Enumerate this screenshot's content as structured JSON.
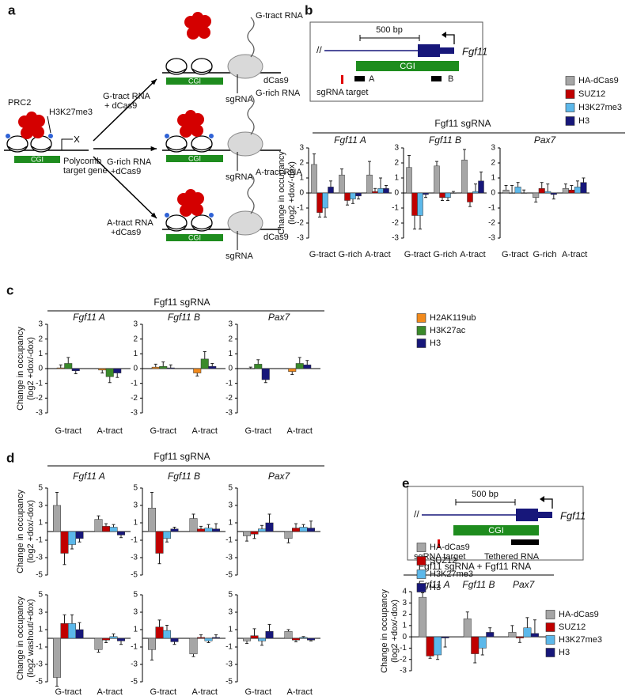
{
  "panel_a": {
    "letter": "a",
    "prc2": "PRC2",
    "mark": "H3K27me3",
    "cgi": "CGI",
    "target_gene": [
      "Polycomb",
      "target gene"
    ],
    "arrows": [
      [
        "G-tract RNA",
        "+ dCas9"
      ],
      [
        "G-rich RNA",
        "+dCas9"
      ],
      [
        "A-tract RNA",
        "+dCas9"
      ]
    ],
    "scenes": [
      {
        "rna": "G-tract RNA",
        "dcas9": "dCas9",
        "sgrna": "sgRNA",
        "cgi": "CGI"
      },
      {
        "rna": "G-rich RNA",
        "sgrna": "sgRNA",
        "cgi": "CGI"
      },
      {
        "rna": "A-tract RNA",
        "dcas9": "dCas9",
        "sgrna": "sgRNA",
        "cgi": "CGI"
      }
    ]
  },
  "panel_b": {
    "letter": "b",
    "header": "Fgf11 sgRNA",
    "diagram": {
      "scale": "500 bp",
      "gene": "Fgf11",
      "cgi": "CGI",
      "site_a": "A",
      "site_b": "B",
      "sgrna_target": "sgRNA target"
    }
  },
  "panel_c": {
    "letter": "c",
    "header": "Fgf11 sgRNA"
  },
  "panel_d": {
    "letter": "d",
    "header": "Fgf11 sgRNA"
  },
  "panel_e": {
    "letter": "e",
    "header": "Fgf11 sgRNA + Fgf11 RNA",
    "diagram": {
      "scale": "500 bp",
      "gene": "Fgf11",
      "cgi": "CGI",
      "sgrna_target": "sgRNA target",
      "tethered_rna": "Tethered RNA"
    }
  },
  "chart_data": [
    {
      "type": "bar",
      "title": "Fgf11 A",
      "ylabel": [
        "Change in occupancy",
        "(log2 +dox/-dox)"
      ],
      "categories": [
        "G-tract",
        "G-rich",
        "A-tract"
      ],
      "ylim": [
        -3,
        3
      ],
      "yticks": [
        3,
        2,
        1,
        0,
        -1,
        -2,
        -3
      ],
      "series": [
        {
          "name": "HA-dCas9",
          "color": "#a6a6a6",
          "values": [
            1.9,
            1.2,
            1.2
          ],
          "errors": [
            0.7,
            0.4,
            0.9
          ]
        },
        {
          "name": "SUZ12",
          "color": "#c00000",
          "values": [
            -1.3,
            -0.5,
            0.1
          ],
          "errors": [
            0.3,
            0.3,
            0.2
          ]
        },
        {
          "name": "H3K27me3",
          "color": "#5cb8ea",
          "values": [
            -1.0,
            -0.4,
            0.3
          ],
          "errors": [
            0.6,
            0.3,
            0.7
          ]
        },
        {
          "name": "H3",
          "color": "#17177a",
          "values": [
            0.4,
            -0.2,
            0.3
          ],
          "errors": [
            0.4,
            0.2,
            0.2
          ]
        }
      ]
    },
    {
      "type": "bar",
      "title": "Fgf11 B",
      "categories": [
        "G-tract",
        "G-rich",
        "A-tract"
      ],
      "ylim": [
        -3,
        3
      ],
      "yticks": [
        3,
        2,
        1,
        0,
        -1,
        -2,
        -3
      ],
      "series": [
        {
          "name": "HA-dCas9",
          "color": "#a6a6a6",
          "values": [
            1.7,
            1.8,
            2.2
          ],
          "errors": [
            0.8,
            0.3,
            0.7
          ]
        },
        {
          "name": "SUZ12",
          "color": "#c00000",
          "values": [
            -1.5,
            -0.3,
            -0.6
          ],
          "errors": [
            0.9,
            0.2,
            0.3
          ]
        },
        {
          "name": "H3K27me3",
          "color": "#5cb8ea",
          "values": [
            -1.5,
            -0.3,
            0.1
          ],
          "errors": [
            0.9,
            0.2,
            0.5
          ]
        },
        {
          "name": "H3",
          "color": "#17177a",
          "values": [
            -0.1,
            0.0,
            0.8
          ],
          "errors": [
            0.2,
            0.1,
            0.6
          ]
        }
      ]
    },
    {
      "type": "bar",
      "title": "Pax7",
      "categories": [
        "G-tract",
        "G-rich",
        "A-tract"
      ],
      "ylim": [
        -3,
        3
      ],
      "yticks": [
        3,
        2,
        1,
        0,
        -1,
        -2,
        -3
      ],
      "series": [
        {
          "name": "HA-dCas9",
          "color": "#a6a6a6",
          "values": [
            0.2,
            -0.3,
            0.3
          ],
          "errors": [
            0.3,
            0.3,
            0.3
          ]
        },
        {
          "name": "SUZ12",
          "color": "#c00000",
          "values": [
            0.0,
            0.3,
            0.2
          ],
          "errors": [
            0.5,
            0.4,
            0.3
          ]
        },
        {
          "name": "H3K27me3",
          "color": "#5cb8ea",
          "values": [
            0.4,
            0.1,
            0.4
          ],
          "errors": [
            0.3,
            0.5,
            0.4
          ]
        },
        {
          "name": "H3",
          "color": "#17177a",
          "values": [
            0.0,
            -0.1,
            0.7
          ],
          "errors": [
            0.2,
            0.3,
            0.3
          ]
        }
      ]
    },
    {
      "type": "bar",
      "title": "Fgf11 A",
      "ylabel": [
        "Change in occupancy",
        "(log2 +dox/-dox)"
      ],
      "categories": [
        "G-tract",
        "A-tract"
      ],
      "ylim": [
        -3,
        3
      ],
      "yticks": [
        3,
        2,
        1,
        0,
        -1,
        -2,
        -3
      ],
      "series": [
        {
          "name": "H2AK119ub",
          "color": "#f28a1c",
          "values": [
            0.05,
            -0.1
          ],
          "errors": [
            0.2,
            0.2
          ]
        },
        {
          "name": "H3K27ac",
          "color": "#3a8a2a",
          "values": [
            0.35,
            -0.55
          ],
          "errors": [
            0.4,
            0.4
          ]
        },
        {
          "name": "H3",
          "color": "#17177a",
          "values": [
            -0.15,
            -0.3
          ],
          "errors": [
            0.2,
            0.3
          ]
        }
      ]
    },
    {
      "type": "bar",
      "title": "Fgf11 B",
      "categories": [
        "G-tract",
        "A-tract"
      ],
      "ylim": [
        -3,
        3
      ],
      "yticks": [
        3,
        2,
        1,
        0,
        -1,
        -2,
        -3
      ],
      "series": [
        {
          "name": "H2AK119ub",
          "color": "#f28a1c",
          "values": [
            0.1,
            -0.3
          ],
          "errors": [
            0.2,
            0.2
          ]
        },
        {
          "name": "H3K27ac",
          "color": "#3a8a2a",
          "values": [
            0.15,
            0.65
          ],
          "errors": [
            0.3,
            0.5
          ]
        },
        {
          "name": "H3",
          "color": "#17177a",
          "values": [
            0.05,
            0.15
          ],
          "errors": [
            0.2,
            0.2
          ]
        }
      ]
    },
    {
      "type": "bar",
      "title": "Pax7",
      "categories": [
        "G-tract",
        "A-tract"
      ],
      "ylim": [
        -3,
        3
      ],
      "yticks": [
        3,
        2,
        1,
        0,
        -1,
        -2,
        -3
      ],
      "series": [
        {
          "name": "H2AK119ub",
          "color": "#f28a1c",
          "values": [
            0.0,
            -0.2
          ],
          "errors": [
            0.1,
            0.2
          ]
        },
        {
          "name": "H3K27ac",
          "color": "#3a8a2a",
          "values": [
            0.3,
            0.35
          ],
          "errors": [
            0.3,
            0.4
          ]
        },
        {
          "name": "H3",
          "color": "#17177a",
          "values": [
            -0.75,
            0.25
          ],
          "errors": [
            0.2,
            0.3
          ]
        }
      ]
    },
    {
      "type": "bar",
      "title": "Fgf11 A",
      "ylabel": [
        "Change in occupancy",
        "(log2 +dox/-dox)"
      ],
      "ylim": [
        -5,
        5
      ],
      "yticks": [
        5,
        3,
        1,
        -1,
        -3,
        -5
      ],
      "series": [
        {
          "name": "HA-dCas9",
          "color": "#a6a6a6",
          "values": [
            3.0,
            1.4
          ],
          "errors": [
            1.5,
            0.4
          ]
        },
        {
          "name": "SUZ12",
          "color": "#c00000",
          "values": [
            -2.5,
            0.6
          ],
          "errors": [
            1.3,
            0.3
          ]
        },
        {
          "name": "H3K27me3",
          "color": "#5cb8ea",
          "values": [
            -1.5,
            0.5
          ],
          "errors": [
            0.5,
            0.3
          ]
        },
        {
          "name": "H3",
          "color": "#17177a",
          "values": [
            -0.8,
            -0.4
          ],
          "errors": [
            0.4,
            0.3
          ]
        }
      ]
    },
    {
      "type": "bar",
      "title": "Fgf11 B",
      "ylim": [
        -5,
        5
      ],
      "yticks": [
        5,
        3,
        1,
        -1,
        -3,
        -5
      ],
      "series": [
        {
          "name": "HA-dCas9",
          "color": "#a6a6a6",
          "values": [
            2.7,
            1.5
          ],
          "errors": [
            1.8,
            0.5
          ]
        },
        {
          "name": "SUZ12",
          "color": "#c00000",
          "values": [
            -2.5,
            0.3
          ],
          "errors": [
            1.2,
            0.3
          ]
        },
        {
          "name": "H3K27me3",
          "color": "#5cb8ea",
          "values": [
            -0.8,
            0.4
          ],
          "errors": [
            0.4,
            0.4
          ]
        },
        {
          "name": "H3",
          "color": "#17177a",
          "values": [
            0.3,
            0.3
          ],
          "errors": [
            0.2,
            0.6
          ]
        }
      ]
    },
    {
      "type": "bar",
      "title": "Pax7",
      "ylim": [
        -5,
        5
      ],
      "yticks": [
        5,
        3,
        1,
        -1,
        -3,
        -5
      ],
      "series": [
        {
          "name": "HA-dCas9",
          "color": "#a6a6a6",
          "values": [
            -0.5,
            -0.8
          ],
          "errors": [
            0.6,
            0.5
          ]
        },
        {
          "name": "SUZ12",
          "color": "#c00000",
          "values": [
            -0.3,
            0.4
          ],
          "errors": [
            0.5,
            0.5
          ]
        },
        {
          "name": "H3K27me3",
          "color": "#5cb8ea",
          "values": [
            0.3,
            0.5
          ],
          "errors": [
            0.4,
            0.3
          ]
        },
        {
          "name": "H3",
          "color": "#17177a",
          "values": [
            1.0,
            0.4
          ],
          "errors": [
            1.0,
            0.8
          ]
        }
      ]
    },
    {
      "type": "bar",
      "ylabel": [
        "Change in occupancy",
        "(log2 washout/+dox)"
      ],
      "categories": [
        "G-tract",
        "A-tract"
      ],
      "ylim": [
        -5,
        5
      ],
      "yticks": [
        5,
        3,
        1,
        -1,
        -3,
        -5
      ],
      "series": [
        {
          "name": "HA-dCas9",
          "color": "#a6a6a6",
          "values": [
            -4.5,
            -1.3
          ],
          "errors": [
            1.0,
            0.3
          ]
        },
        {
          "name": "SUZ12",
          "color": "#c00000",
          "values": [
            1.7,
            -0.2
          ],
          "errors": [
            1.0,
            0.3
          ]
        },
        {
          "name": "H3K27me3",
          "color": "#5cb8ea",
          "values": [
            1.7,
            0.2
          ],
          "errors": [
            1.0,
            0.3
          ]
        },
        {
          "name": "H3",
          "color": "#17177a",
          "values": [
            1.0,
            -0.3
          ],
          "errors": [
            0.8,
            0.4
          ]
        }
      ]
    },
    {
      "type": "bar",
      "categories": [
        "G-tract",
        "A-tract"
      ],
      "ylim": [
        -5,
        5
      ],
      "yticks": [
        5,
        3,
        1,
        -1,
        -3,
        -5
      ],
      "series": [
        {
          "name": "HA-dCas9",
          "color": "#a6a6a6",
          "values": [
            -1.3,
            -1.8
          ],
          "errors": [
            1.2,
            0.3
          ]
        },
        {
          "name": "SUZ12",
          "color": "#c00000",
          "values": [
            1.3,
            0.1
          ],
          "errors": [
            0.8,
            0.3
          ]
        },
        {
          "name": "H3K27me3",
          "color": "#5cb8ea",
          "values": [
            0.9,
            -0.3
          ],
          "errors": [
            0.6,
            0.2
          ]
        },
        {
          "name": "H3",
          "color": "#17177a",
          "values": [
            -0.4,
            0.1
          ],
          "errors": [
            0.3,
            0.3
          ]
        }
      ]
    },
    {
      "type": "bar",
      "categories": [
        "G-tract",
        "A-tract"
      ],
      "ylim": [
        -5,
        5
      ],
      "yticks": [
        5,
        3,
        1,
        -1,
        -3,
        -5
      ],
      "series": [
        {
          "name": "HA-dCas9",
          "color": "#a6a6a6",
          "values": [
            -0.3,
            0.8
          ],
          "errors": [
            0.3,
            0.2
          ]
        },
        {
          "name": "SUZ12",
          "color": "#c00000",
          "values": [
            0.3,
            -0.2
          ],
          "errors": [
            0.8,
            0.2
          ]
        },
        {
          "name": "H3K27me3",
          "color": "#5cb8ea",
          "values": [
            -0.3,
            0.1
          ],
          "errors": [
            0.5,
            0.1
          ]
        },
        {
          "name": "H3",
          "color": "#17177a",
          "values": [
            0.8,
            -0.2
          ],
          "errors": [
            0.8,
            0.1
          ]
        }
      ]
    },
    {
      "type": "bar",
      "ylabel": [
        "Change in occupancy",
        "(log2 +dox/-dox)"
      ],
      "categories": [
        "Fgf11 A",
        "Fgf11 B",
        "Pax7"
      ],
      "ylim": [
        -3,
        4
      ],
      "yticks": [
        4,
        3,
        2,
        1,
        0,
        -1,
        -2,
        -3
      ],
      "series": [
        {
          "name": "HA-dCas9",
          "color": "#a6a6a6",
          "values": [
            3.5,
            1.6,
            0.4
          ],
          "errors": [
            0.4,
            0.6,
            0.6
          ]
        },
        {
          "name": "SUZ12",
          "color": "#c00000",
          "values": [
            -1.7,
            -1.5,
            -0.1
          ],
          "errors": [
            0.2,
            0.8,
            0.4
          ]
        },
        {
          "name": "H3K27me3",
          "color": "#5cb8ea",
          "values": [
            -1.6,
            -1.0,
            0.8
          ],
          "errors": [
            0.4,
            0.6,
            0.9
          ]
        },
        {
          "name": "H3",
          "color": "#17177a",
          "values": [
            -0.1,
            0.4,
            0.3
          ],
          "errors": [
            0.8,
            0.4,
            1.2
          ]
        }
      ]
    }
  ]
}
